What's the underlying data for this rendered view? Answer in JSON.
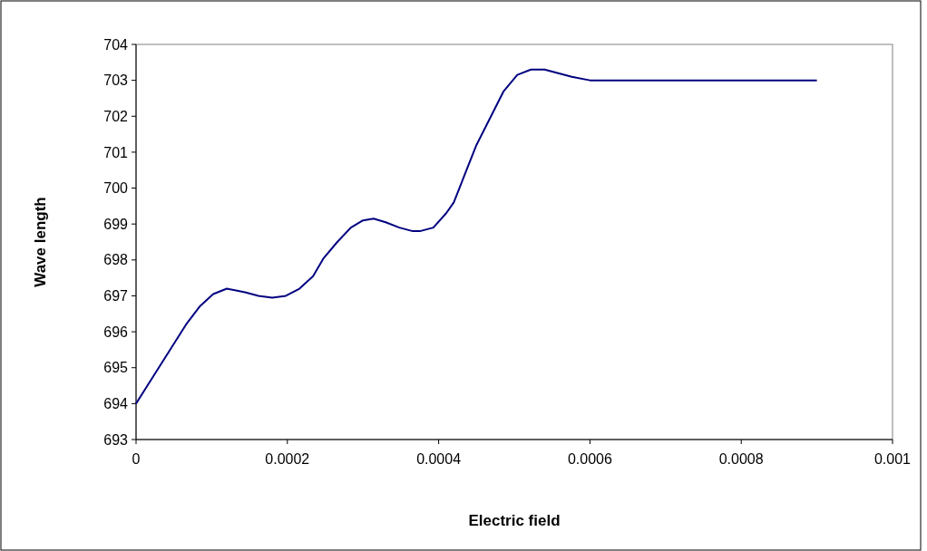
{
  "chart_data": {
    "type": "line",
    "xlabel": "Electric field",
    "ylabel": "Wave length",
    "xlim": [
      0,
      0.001
    ],
    "xticks": [
      0,
      0.0002,
      0.0004,
      0.0006,
      0.0008,
      0.001
    ],
    "ylim": [
      693,
      704
    ],
    "yticks": [
      693,
      694,
      695,
      696,
      697,
      698,
      699,
      700,
      701,
      702,
      703,
      704
    ],
    "grid": false,
    "marker": "none",
    "line_style": "solid",
    "series": [
      {
        "color": "#000080",
        "x": [
          0,
          1.2e-05,
          3e-05,
          4.8e-05,
          6.6e-05,
          8.4e-05,
          0.000102,
          0.00012,
          0.000144,
          0.000162,
          0.00018,
          0.000198,
          0.000216,
          0.000234,
          0.000248,
          0.000266,
          0.000284,
          0.0003,
          0.000314,
          0.00033,
          0.000348,
          0.000366,
          0.000375,
          0.000393,
          0.00041,
          0.00042,
          0.000434,
          0.00045,
          0.000468,
          0.000486,
          0.000504,
          0.000522,
          0.00054,
          0.000558,
          0.000576,
          0.0006,
          0.0007,
          0.0008,
          0.0009
        ],
        "values": [
          694.0,
          694.4,
          695.0,
          695.6,
          696.2,
          696.7,
          697.05,
          697.2,
          697.1,
          697.0,
          696.95,
          697.0,
          697.2,
          697.55,
          698.05,
          698.5,
          698.9,
          699.1,
          699.15,
          699.05,
          698.9,
          698.8,
          698.8,
          698.9,
          699.3,
          699.6,
          700.35,
          701.2,
          701.95,
          702.7,
          703.15,
          703.3,
          703.3,
          703.2,
          703.1,
          703.0,
          703.0,
          703.0,
          703.0
        ]
      }
    ]
  }
}
